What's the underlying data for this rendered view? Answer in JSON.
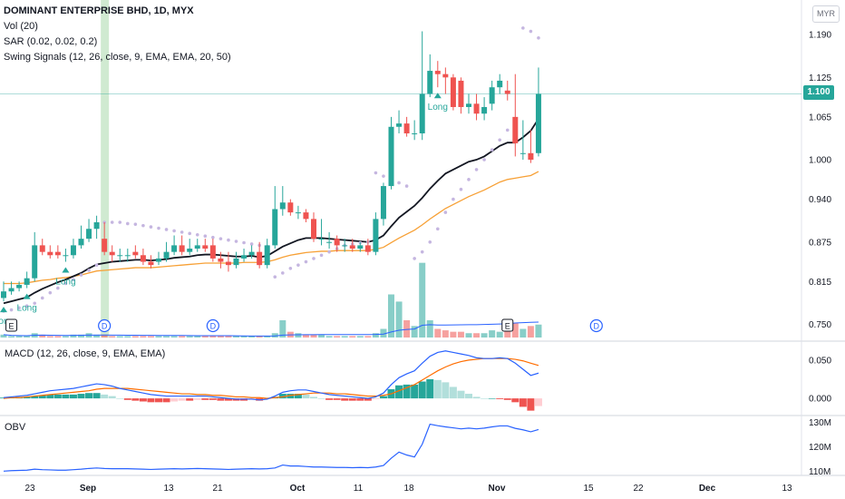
{
  "header": {
    "title": "DOMINANT ENTERPRISE BHD, 1D, MYX",
    "indicators": [
      "Vol (20)",
      "SAR (0.02, 0.02, 0.2)",
      "Swing Signals (12, 26, close, 9, EMA, EMA, 20, 50)"
    ]
  },
  "currency": "MYR",
  "last_price": "1.100",
  "panes": {
    "macd_label": "MACD (12, 26, close, 9, EMA, EMA)",
    "obv_label": "OBV"
  },
  "colors": {
    "up": "#26a69a",
    "down": "#ef5350",
    "ema_fast": "#131722",
    "ema_slow": "#f7a035",
    "sar": "#c5b6e0",
    "macd": "#2962ff",
    "signal": "#ff6d00",
    "obv": "#2962ff",
    "highlight": "#c8e6c9",
    "signal_text": "#26a69a"
  },
  "chart_data": [
    {
      "type": "candlestick",
      "title": "DOMINANT ENTERPRISE BHD, 1D, MYX",
      "x": [
        "Aug 19",
        "Aug 20",
        "Aug 23",
        "Aug 24",
        "Aug 25",
        "Aug 26",
        "Aug 27",
        "Aug 30",
        "Sep 1",
        "Sep 2",
        "Sep 3",
        "Sep 6",
        "Sep 7",
        "Sep 8",
        "Sep 9",
        "Sep 10",
        "Sep 13",
        "Sep 14",
        "Sep 15",
        "Sep 17",
        "Sep 20",
        "Sep 21",
        "Sep 22",
        "Sep 23",
        "Sep 24",
        "Sep 27",
        "Sep 28",
        "Sep 29",
        "Sep 30",
        "Oct 1",
        "Oct 4",
        "Oct 5",
        "Oct 6",
        "Oct 7",
        "Oct 8",
        "Oct 11",
        "Oct 12",
        "Oct 13",
        "Oct 14",
        "Oct 15",
        "Oct 18",
        "Oct 19",
        "Oct 20",
        "Oct 21",
        "Oct 22",
        "Oct 25",
        "Oct 26",
        "Oct 27",
        "Oct 28",
        "Oct 29",
        "Nov 1",
        "Nov 2",
        "Nov 3",
        "Nov 5",
        "Nov 8",
        "Nov 9",
        "Nov 10",
        "Nov 11",
        "Nov 12",
        "Nov 15",
        "Nov 16",
        "Nov 17",
        "Nov 18",
        "Nov 19",
        "Nov 22",
        "Nov 23",
        "Nov 24",
        "Nov 25",
        "Nov 26",
        "Nov 29"
      ],
      "open": [
        0.79,
        0.8,
        0.805,
        0.81,
        0.82,
        0.87,
        0.86,
        0.86,
        0.855,
        0.855,
        0.87,
        0.88,
        0.895,
        0.88,
        0.86,
        0.855,
        0.855,
        0.86,
        0.855,
        0.845,
        0.845,
        0.85,
        0.86,
        0.87,
        0.86,
        0.865,
        0.87,
        0.87,
        0.85,
        0.845,
        0.84,
        0.85,
        0.855,
        0.86,
        0.84,
        0.87,
        0.925,
        0.935,
        0.92,
        0.92,
        0.91,
        0.88,
        0.875,
        0.88,
        0.87,
        0.87,
        0.865,
        0.87,
        0.86,
        0.91,
        0.96,
        1.05,
        1.055,
        1.04,
        1.04,
        1.1,
        1.135,
        1.13,
        1.125,
        1.12,
        1.08,
        1.085,
        1.07,
        1.085,
        1.11,
        1.105,
        1.065,
        1.01,
        1.01,
        1.01
      ],
      "close": [
        0.8,
        0.805,
        0.81,
        0.82,
        0.87,
        0.86,
        0.855,
        0.855,
        0.855,
        0.87,
        0.88,
        0.895,
        0.905,
        0.86,
        0.855,
        0.855,
        0.855,
        0.855,
        0.845,
        0.84,
        0.85,
        0.86,
        0.87,
        0.86,
        0.865,
        0.87,
        0.865,
        0.85,
        0.845,
        0.84,
        0.85,
        0.855,
        0.86,
        0.84,
        0.87,
        0.925,
        0.935,
        0.92,
        0.92,
        0.91,
        0.88,
        0.88,
        0.875,
        0.87,
        0.87,
        0.865,
        0.87,
        0.86,
        0.91,
        0.96,
        1.05,
        1.055,
        1.04,
        1.04,
        1.1,
        1.135,
        1.13,
        1.125,
        1.08,
        1.08,
        1.085,
        1.07,
        1.08,
        1.11,
        1.12,
        1.1,
        1.025,
        1.01,
        1.0,
        1.1
      ],
      "high": [
        0.815,
        0.815,
        0.815,
        0.83,
        0.89,
        0.88,
        0.87,
        0.87,
        0.865,
        0.88,
        0.9,
        0.91,
        0.915,
        0.905,
        0.87,
        0.865,
        0.865,
        0.87,
        0.865,
        0.855,
        0.86,
        0.875,
        0.885,
        0.885,
        0.88,
        0.88,
        0.88,
        0.88,
        0.86,
        0.86,
        0.86,
        0.865,
        0.87,
        0.875,
        0.88,
        0.96,
        0.96,
        0.94,
        0.93,
        0.925,
        0.92,
        0.91,
        0.89,
        0.885,
        0.88,
        0.88,
        0.875,
        0.88,
        0.92,
        0.965,
        1.065,
        1.075,
        1.065,
        1.06,
        1.195,
        1.16,
        1.15,
        1.14,
        1.13,
        1.125,
        1.1,
        1.1,
        1.095,
        1.12,
        1.13,
        1.12,
        1.13,
        1.06,
        1.045,
        1.14
      ],
      "low": [
        0.785,
        0.795,
        0.8,
        0.805,
        0.815,
        0.855,
        0.85,
        0.85,
        0.845,
        0.85,
        0.865,
        0.875,
        0.88,
        0.855,
        0.845,
        0.845,
        0.845,
        0.85,
        0.84,
        0.835,
        0.84,
        0.845,
        0.855,
        0.855,
        0.855,
        0.86,
        0.86,
        0.845,
        0.835,
        0.83,
        0.835,
        0.845,
        0.85,
        0.835,
        0.835,
        0.865,
        0.915,
        0.915,
        0.91,
        0.905,
        0.875,
        0.87,
        0.865,
        0.86,
        0.86,
        0.86,
        0.86,
        0.855,
        0.855,
        0.9,
        0.955,
        1.04,
        1.035,
        1.03,
        1.03,
        1.095,
        1.11,
        1.1,
        1.075,
        1.07,
        1.07,
        1.06,
        1.06,
        1.075,
        1.1,
        1.09,
        1.005,
        1.0,
        0.995,
        1.005
      ],
      "volume": [
        2,
        1,
        1,
        1,
        3,
        2,
        1,
        1,
        1,
        2,
        2,
        3,
        2,
        2,
        1,
        1,
        1,
        1,
        1,
        1,
        1,
        1,
        1,
        1,
        1,
        1,
        1,
        1,
        1,
        1,
        1,
        1,
        1,
        1,
        1,
        3,
        12,
        4,
        3,
        2,
        2,
        2,
        1,
        1,
        1,
        1,
        1,
        1,
        3,
        6,
        30,
        25,
        12,
        8,
        52,
        12,
        6,
        5,
        4,
        4,
        3,
        3,
        3,
        5,
        4,
        6,
        10,
        6,
        8,
        9
      ],
      "ema_fast": [
        0.782,
        0.785,
        0.788,
        0.791,
        0.798,
        0.804,
        0.809,
        0.814,
        0.818,
        0.823,
        0.828,
        0.835,
        0.841,
        0.843,
        0.845,
        0.846,
        0.847,
        0.848,
        0.848,
        0.847,
        0.848,
        0.849,
        0.851,
        0.852,
        0.853,
        0.855,
        0.856,
        0.856,
        0.855,
        0.854,
        0.853,
        0.853,
        0.854,
        0.852,
        0.854,
        0.861,
        0.868,
        0.873,
        0.878,
        0.881,
        0.881,
        0.881,
        0.88,
        0.879,
        0.878,
        0.877,
        0.876,
        0.875,
        0.878,
        0.885,
        0.899,
        0.912,
        0.921,
        0.93,
        0.942,
        0.956,
        0.968,
        0.979,
        0.985,
        0.991,
        0.997,
        1.0,
        1.005,
        1.013,
        1.021,
        1.026,
        1.026,
        1.034,
        1.044,
        1.062
      ],
      "ema_slow": [
        0.812,
        0.812,
        0.812,
        0.813,
        0.815,
        0.817,
        0.818,
        0.82,
        0.821,
        0.823,
        0.825,
        0.828,
        0.831,
        0.832,
        0.833,
        0.834,
        0.835,
        0.836,
        0.836,
        0.836,
        0.837,
        0.838,
        0.839,
        0.84,
        0.841,
        0.842,
        0.843,
        0.843,
        0.843,
        0.843,
        0.843,
        0.844,
        0.844,
        0.844,
        0.845,
        0.848,
        0.852,
        0.855,
        0.857,
        0.859,
        0.86,
        0.861,
        0.861,
        0.862,
        0.862,
        0.862,
        0.862,
        0.862,
        0.864,
        0.867,
        0.874,
        0.881,
        0.887,
        0.893,
        0.901,
        0.91,
        0.918,
        0.926,
        0.932,
        0.938,
        0.944,
        0.949,
        0.954,
        0.96,
        0.966,
        0.97,
        0.972,
        0.974,
        0.976,
        0.982
      ],
      "sar": [
        0.77,
        0.772,
        0.775,
        0.778,
        0.782,
        0.79,
        0.798,
        0.805,
        0.812,
        0.818,
        0.825,
        0.832,
        0.84,
        0.905,
        0.905,
        0.905,
        0.903,
        0.902,
        0.9,
        0.898,
        0.896,
        0.894,
        0.892,
        0.89,
        0.888,
        0.886,
        0.884,
        0.882,
        0.88,
        0.878,
        0.876,
        0.874,
        0.872,
        0.87,
        0.868,
        0.822,
        0.828,
        0.835,
        0.84,
        0.845,
        0.85,
        0.855,
        0.86,
        0.865,
        0.87,
        0.872,
        0.874,
        0.875,
        0.98,
        0.975,
        0.97,
        0.965,
        0.96,
        0.85,
        0.86,
        0.875,
        0.895,
        0.92,
        0.94,
        0.955,
        0.97,
        0.985,
        1.0,
        1.015,
        1.03,
        1.045,
        1.06,
        1.2,
        1.195,
        1.185
      ],
      "signals": [
        {
          "x": "Aug 19",
          "text": "Long"
        },
        {
          "x": "Aug 24",
          "text": "Long"
        },
        {
          "x": "Sep 1",
          "text": "Long"
        },
        {
          "x": "Nov 10",
          "text": "Long"
        }
      ],
      "event_markers": [
        {
          "x": "Aug 20",
          "text": "E"
        },
        {
          "x": "Sep 8",
          "text": "D"
        },
        {
          "x": "Sep 29",
          "text": "D"
        },
        {
          "x": "Nov 23",
          "text": "E"
        },
        {
          "x": "Dec 9",
          "text": "D"
        }
      ],
      "highlight_x": "Sep 8",
      "ylim": [
        0.73,
        1.215
      ],
      "yticks": [
        "1.190",
        "1.125",
        "1.065",
        "1.000",
        "0.940",
        "0.875",
        "0.815",
        "0.750"
      ],
      "xticks": [
        "23",
        "Sep",
        "13",
        "21",
        "Oct",
        "11",
        "18",
        "Nov",
        "15",
        "22",
        "Dec",
        "13"
      ]
    },
    {
      "type": "line",
      "title": "MACD (12, 26, close, 9, EMA, EMA)",
      "macd": [
        0.001,
        0.002,
        0.003,
        0.004,
        0.006,
        0.008,
        0.01,
        0.011,
        0.012,
        0.013,
        0.015,
        0.017,
        0.019,
        0.018,
        0.016,
        0.013,
        0.011,
        0.009,
        0.007,
        0.005,
        0.004,
        0.003,
        0.003,
        0.003,
        0.003,
        0.003,
        0.003,
        0.002,
        0.001,
        0.0,
        -0.001,
        -0.001,
        -0.001,
        -0.002,
        -0.001,
        0.003,
        0.008,
        0.01,
        0.011,
        0.011,
        0.009,
        0.007,
        0.005,
        0.004,
        0.003,
        0.002,
        0.001,
        0.0,
        0.002,
        0.007,
        0.018,
        0.027,
        0.032,
        0.036,
        0.046,
        0.055,
        0.06,
        0.062,
        0.06,
        0.058,
        0.056,
        0.053,
        0.052,
        0.052,
        0.053,
        0.052,
        0.046,
        0.038,
        0.03,
        0.033
      ],
      "signal": [
        0.0,
        0.001,
        0.001,
        0.002,
        0.003,
        0.004,
        0.005,
        0.006,
        0.007,
        0.008,
        0.009,
        0.01,
        0.012,
        0.013,
        0.013,
        0.013,
        0.013,
        0.012,
        0.011,
        0.01,
        0.009,
        0.008,
        0.007,
        0.006,
        0.006,
        0.005,
        0.005,
        0.004,
        0.004,
        0.003,
        0.002,
        0.002,
        0.001,
        0.001,
        0.0,
        0.001,
        0.002,
        0.004,
        0.005,
        0.006,
        0.007,
        0.007,
        0.007,
        0.006,
        0.006,
        0.005,
        0.004,
        0.003,
        0.003,
        0.004,
        0.006,
        0.01,
        0.014,
        0.018,
        0.024,
        0.03,
        0.036,
        0.041,
        0.045,
        0.048,
        0.05,
        0.051,
        0.052,
        0.052,
        0.052,
        0.052,
        0.051,
        0.049,
        0.046,
        0.043
      ],
      "histogram": [
        0.001,
        0.001,
        0.002,
        0.002,
        0.003,
        0.004,
        0.005,
        0.005,
        0.005,
        0.005,
        0.006,
        0.007,
        0.007,
        0.005,
        0.003,
        0.0,
        -0.002,
        -0.003,
        -0.004,
        -0.005,
        -0.005,
        -0.005,
        -0.004,
        -0.003,
        -0.003,
        -0.002,
        -0.002,
        -0.002,
        -0.003,
        -0.003,
        -0.003,
        -0.003,
        -0.002,
        -0.003,
        -0.001,
        0.002,
        0.006,
        0.006,
        0.006,
        0.005,
        0.002,
        0.0,
        -0.002,
        -0.002,
        -0.003,
        -0.003,
        -0.003,
        -0.003,
        -0.001,
        0.003,
        0.012,
        0.017,
        0.018,
        0.018,
        0.022,
        0.025,
        0.024,
        0.021,
        0.015,
        0.01,
        0.006,
        0.002,
        0.0,
        0.0,
        -0.001,
        -0.002,
        -0.005,
        -0.011,
        -0.016,
        -0.01
      ],
      "ylim": [
        -0.02,
        0.07
      ],
      "yticks": [
        "0.050",
        "0.000"
      ]
    },
    {
      "type": "line",
      "title": "OBV",
      "values": [
        110.0,
        110.2,
        110.3,
        110.4,
        110.8,
        110.6,
        110.5,
        110.4,
        110.4,
        110.6,
        110.8,
        111.1,
        111.3,
        111.1,
        111.0,
        111.0,
        111.0,
        110.9,
        110.8,
        110.7,
        110.8,
        110.9,
        111.0,
        110.9,
        111.0,
        111.1,
        111.0,
        110.9,
        110.8,
        110.7,
        110.8,
        110.9,
        111.0,
        110.9,
        111.0,
        111.3,
        112.5,
        112.1,
        112.1,
        111.9,
        111.7,
        111.7,
        111.6,
        111.5,
        111.5,
        111.4,
        111.5,
        111.4,
        111.7,
        112.3,
        115.3,
        117.8,
        116.6,
        115.8,
        121.0,
        129.2,
        128.6,
        128.1,
        127.7,
        127.3,
        127.6,
        127.3,
        127.6,
        128.1,
        128.5,
        128.5,
        127.5,
        126.9,
        126.1,
        127.0
      ],
      "ylim": [
        109,
        132
      ],
      "yticks": [
        "130M",
        "120M",
        "110M"
      ]
    }
  ]
}
